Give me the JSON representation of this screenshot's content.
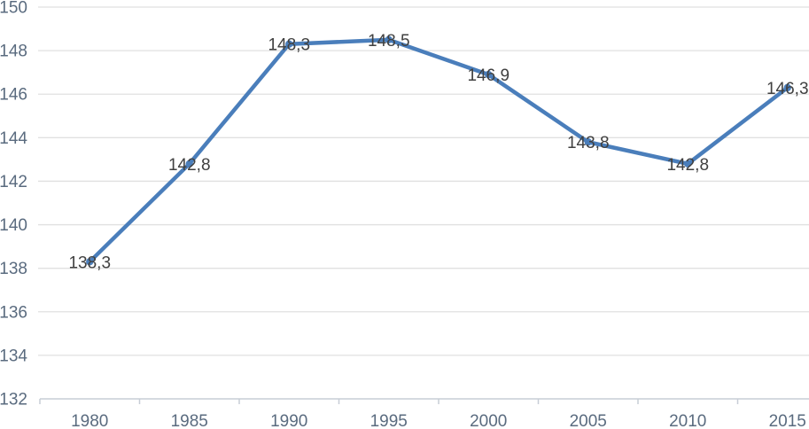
{
  "chart_data": {
    "type": "line",
    "title": "",
    "xlabel": "",
    "ylabel": "",
    "categories": [
      "1980",
      "1985",
      "1990",
      "1995",
      "2000",
      "2005",
      "2010",
      "2015"
    ],
    "values": [
      138.3,
      142.8,
      148.3,
      148.5,
      146.9,
      143.8,
      142.8,
      146.3
    ],
    "point_labels": [
      "138,3",
      "142,8",
      "148,3",
      "148,5",
      "146,9",
      "143,8",
      "142,8",
      "146,3"
    ],
    "series_name": "",
    "ylim": [
      132,
      150
    ],
    "ytick_step": 2,
    "yticks": [
      132,
      134,
      136,
      138,
      140,
      142,
      144,
      146,
      148,
      150
    ],
    "grid": true,
    "legend": false,
    "legend_position": "none",
    "colors": {
      "line": "#4a7ebb",
      "marker": "#4a7ebb",
      "data_label": "#404040",
      "tick_label": "#5a6b7f",
      "gridline": "#e0e0e0",
      "axis_line": "#c7cdd6",
      "background": "#ffffff"
    }
  }
}
